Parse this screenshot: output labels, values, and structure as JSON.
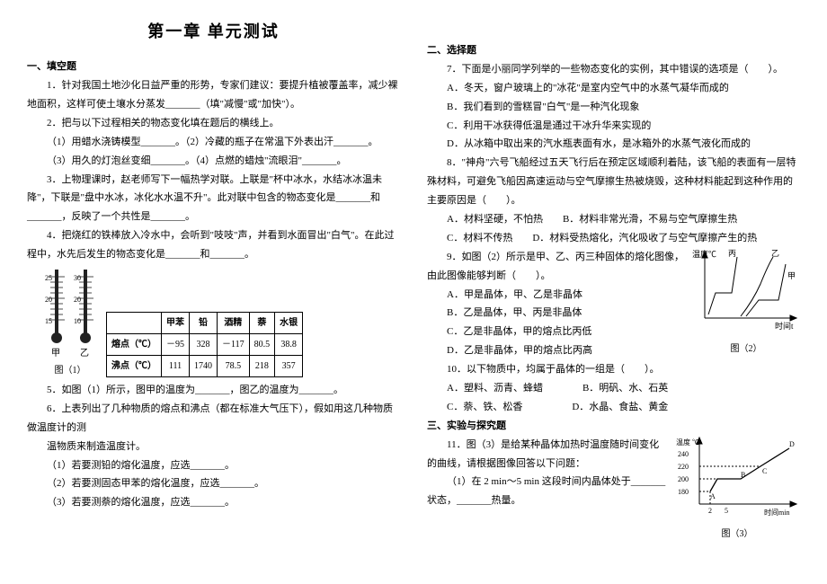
{
  "title": "第一章  单元测试",
  "sec1": "一、填空题",
  "q1": "1．针对我国土地沙化日益严重的形势，专家们建议：要提升植被覆盖率，减少裸地面积，这样可使土壤水分蒸发_______（填\"减慢\"或\"加快\"）。",
  "q2": "2．把与以下过程相关的物态变化填在题后的横线上。",
  "q2a": "（1）用蜡水浇铸模型_______。（2）冷藏的瓶子在常温下外表出汗_______。",
  "q2b": "（3）用久的灯泡丝变细_______。（4）点燃的蜡烛\"流眼泪\"_______。",
  "q3": "3．上物理课时，赵老师写下一幅热学对联。上联是\"杯中冰水，水结冰冰温未降\"，下联是\"盘中水冰，冰化水水温不升\"。此对联中包含的物态变化是_______和_______，反映了一个共性是_______。",
  "q4": "4．把烧红的铁棒放入冷水中，会听到\"吱吱\"声，并看到水面冒出\"白气\"。在此过程中，水先后发生的物态变化是_______和_______。",
  "table": {
    "headers": [
      "",
      "甲苯",
      "铅",
      "酒精",
      "萘",
      "水银"
    ],
    "rows": [
      [
        "熔点（℃）",
        "－95",
        "328",
        "－117",
        "80.5",
        "38.8"
      ],
      [
        "沸点（℃）",
        "111",
        "1740",
        "78.5",
        "218",
        "357"
      ]
    ]
  },
  "q5": "5．如图（1）所示，图甲的温度为_______，图乙的温度为_______。",
  "q6": "6．上表列出了几种物质的熔点和沸点（都在标准大气压下），假如用这几种物质做温度计的测",
  "q6b": "温物质来制造温度计。",
  "q6c1": "（1）若要测铅的熔化温度，应选_______。",
  "q6c2": "（2）若要测固态甲苯的熔化温度，应选_______。",
  "q6c3": "（3）若要测萘的熔化温度，应选_______。",
  "fig1label": "图（1）",
  "jia": "甲",
  "yi": "乙",
  "sec2": "二、选择题",
  "q7": "7．下面是小丽同学列举的一些物态变化的实例，其中错误的选项是（　　）。",
  "q7a": "A．冬天，窗户玻璃上的\"冰花\"是室内空气中的水蒸气凝华而成的",
  "q7b": "B．我们看到的雪糕冒\"白气\"是一种汽化现象",
  "q7c": "C．利用干冰获得低温是通过干冰升华来实现的",
  "q7d": "D．从冰箱中取出来的汽水瓶表面有水，是冰箱外的水蒸气液化而成的",
  "q8": "8．\"神舟\"六号飞船经过五天飞行后在预定区域顺利着陆，该飞船的表面有一层特殊材料，可避免飞船因高速运动与空气摩擦生热被烧毁，这种材料能起到这种作用的主要原因是（　　）。",
  "q8a": "A．材料坚硬，不怕热",
  "q8b": "B．材料非常光滑，不易与空气摩擦生热",
  "q8c": "C．材料不传热",
  "q8d": "D．材料受热熔化，汽化吸收了与空气摩擦产生的热",
  "q9": "9．如图（2）所示是甲、乙、丙三种固体的熔化图像，由此图像能够判断（　　）。",
  "q9a": "A．甲是晶体，甲、乙是非晶体",
  "q9b": "B．乙是晶体，甲、丙是非晶体",
  "q9c": "C．乙是非晶体，甲的熔点比丙低",
  "q9d": "D．乙是非晶体，甲的熔点比丙高",
  "q10": "10．以下物质中，均属于晶体的一组是（　　）。",
  "q10a": "A．塑料、沥青、蜂蜡",
  "q10b": "B．明矾、水、石英",
  "q10c": "C．萘、铁、松香",
  "q10d": "D．水晶、食盐、黄金",
  "sec3": "三、实验与探究题",
  "q11": "11．图（3）是给某种晶体加热时温度随时间变化的曲线，请根据图像回答以下问题：",
  "q11a": "（1）在 2 min～5 min 这段时间内晶体处于_______状态，_______热量。",
  "chart2": {
    "xlabel": "时间t",
    "ylabel": "温度℃",
    "figlabel": "图（2）",
    "jia": "甲",
    "yi": "乙",
    "bing": "丙",
    "stroke": "#000000"
  },
  "chart3": {
    "xlabel": "时间min",
    "ylabel": "温度 ℃",
    "figlabel": "图（3）",
    "yticks": [
      "180",
      "200",
      "220",
      "240"
    ],
    "letters": {
      "A": "A",
      "B": "B",
      "C": "C",
      "D": "D"
    },
    "stroke": "#000000"
  }
}
